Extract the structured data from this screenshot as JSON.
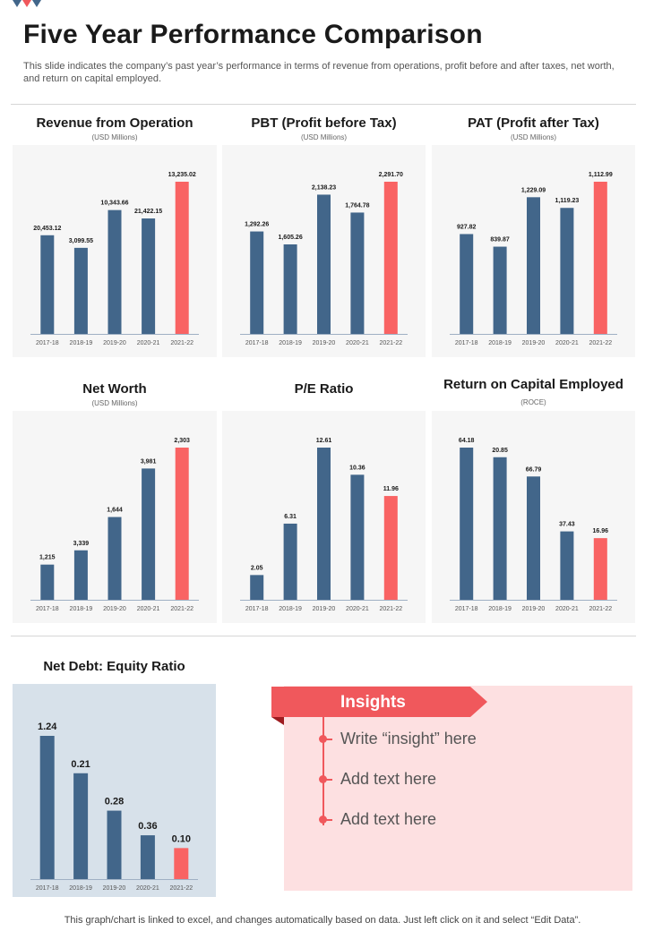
{
  "page": {
    "title": "Five Year Performance Comparison",
    "subtitle": "This slide indicates the company’s past year’s performance in terms of revenue from operations, profit before and after taxes, net worth, and return on capital employed.",
    "footer": "This graph/chart is linked to excel,  and changes automatically based on data. Just left click on it and select “Edit Data”."
  },
  "colors": {
    "bar": "#42668a",
    "highlight": "#f96363",
    "accent": "#f0585c"
  },
  "chart_data": [
    {
      "type": "bar",
      "title": "Revenue from Operation",
      "unit": "(USD Millions)",
      "categories": [
        "2017-18",
        "2018-19",
        "2019-20",
        "2020-21",
        "2021-22"
      ],
      "values": [
        20453.12,
        3099.55,
        10343.66,
        21422.15,
        13235.02
      ],
      "labels": [
        "20,453.12",
        "3,099.55",
        "10,343.66",
        "21,422.15",
        "13,235.02"
      ],
      "bar_scale": [
        9.4,
        8.2,
        11.8,
        11.0,
        14.5
      ]
    },
    {
      "type": "bar",
      "title": "PBT (Profit before Tax)",
      "unit": "(USD Millions)",
      "categories": [
        "2017-18",
        "2018-19",
        "2019-20",
        "2020-21",
        "2021-22"
      ],
      "values": [
        1292.26,
        1605.26,
        2138.23,
        1764.78,
        2291.7
      ],
      "labels": [
        "1,292.26",
        "1,605.26",
        "2,138.23",
        "1,764.78",
        "2,291.70"
      ],
      "bar_scale": [
        10.3,
        9.0,
        14.0,
        12.2,
        15.3
      ]
    },
    {
      "type": "bar",
      "title": "PAT (Profit after Tax)",
      "unit": "(USD Millions)",
      "categories": [
        "2017-18",
        "2018-19",
        "2019-20",
        "2020-21",
        "2021-22"
      ],
      "values": [
        927.82,
        839.87,
        1229.09,
        1119.23,
        1112.99
      ],
      "labels": [
        "927.82",
        "839.87",
        "1,229.09",
        "1,119.23",
        "1,112.99"
      ],
      "bar_scale": [
        10.3,
        9.0,
        14.1,
        13.0,
        15.7
      ]
    },
    {
      "type": "bar",
      "title": "Net Worth",
      "unit": "(USD Millions)",
      "categories": [
        "2017-18",
        "2018-19",
        "2019-20",
        "2020-21",
        "2021-22"
      ],
      "values": [
        1215,
        3339,
        1644,
        3981,
        2303
      ],
      "labels": [
        "1,215",
        "3,339",
        "1,644",
        "3,981",
        "2,303"
      ],
      "bar_scale": [
        3.7,
        5.2,
        8.7,
        13.8,
        16.0
      ]
    },
    {
      "type": "bar",
      "title": "P/E Ratio",
      "unit": "",
      "categories": [
        "2017-18",
        "2018-19",
        "2019-20",
        "2020-21",
        "2021-22"
      ],
      "values": [
        2.05,
        6.31,
        12.61,
        10.36,
        11.96
      ],
      "labels": [
        "2.05",
        "6.31",
        "12.61",
        "10.36",
        "11.96"
      ],
      "bar_scale": [
        2.05,
        6.31,
        12.61,
        10.36,
        8.6
      ]
    },
    {
      "type": "bar",
      "title": "Return on Capital Employed",
      "unit": "(ROCE)",
      "categories": [
        "2017-18",
        "2018-19",
        "2019-20",
        "2020-21",
        "2021-22"
      ],
      "values": [
        64.18,
        20.85,
        66.79,
        37.43,
        16.96
      ],
      "labels": [
        "64.18",
        "20.85",
        "66.79",
        "37.43",
        "16.96"
      ],
      "bar_scale": [
        15.8,
        14.8,
        12.8,
        7.1,
        6.4
      ]
    },
    {
      "type": "bar",
      "title": "Net Debt: Equity Ratio",
      "unit": "",
      "categories": [
        "2017-18",
        "2018-19",
        "2019-20",
        "2020-21",
        "2021-22"
      ],
      "values": [
        1.24,
        0.21,
        0.28,
        0.36,
        0.1
      ],
      "labels": [
        "1.24",
        "0.21",
        "0.28",
        "0.36",
        "0.10"
      ],
      "bar_scale": [
        15.7,
        11.6,
        7.5,
        4.8,
        3.4
      ]
    }
  ],
  "insights": {
    "heading": "Insights",
    "items": [
      "Write “insight” here",
      "Add text here",
      "Add text here"
    ]
  }
}
